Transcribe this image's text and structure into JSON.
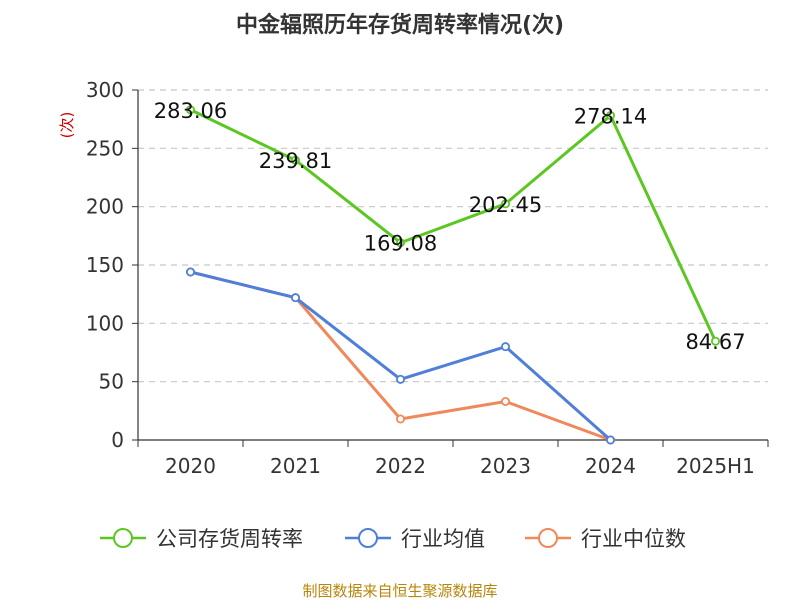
{
  "title": "中金辐照历年存货周转率情况(次)",
  "source": "制图数据来自恒生聚源数据库",
  "chart_data": {
    "type": "line",
    "title": "中金辐照历年存货周转率情况(次)",
    "ylabel": "(次)",
    "xlabel": "",
    "categories": [
      "2020",
      "2021",
      "2022",
      "2023",
      "2024",
      "2025H1"
    ],
    "ylim": [
      0,
      300
    ],
    "yticks": [
      "0",
      "50",
      "100",
      "150",
      "200",
      "250",
      "300"
    ],
    "grid": true,
    "legend_position": "bottom",
    "series": [
      {
        "name": "公司存货周转率",
        "color": "#5cc623",
        "values": [
          283.06,
          239.81,
          169.08,
          202.45,
          278.14,
          84.67
        ],
        "labels": [
          "283.06",
          "239.81",
          "169.08",
          "202.45",
          "278.14",
          "84.67"
        ]
      },
      {
        "name": "行业均值",
        "color": "#4f7fd9",
        "values": [
          144,
          122,
          52,
          80,
          0,
          null
        ]
      },
      {
        "name": "行业中位数",
        "color": "#f0885a",
        "values": [
          144,
          122,
          18,
          33,
          0,
          null
        ]
      }
    ]
  }
}
